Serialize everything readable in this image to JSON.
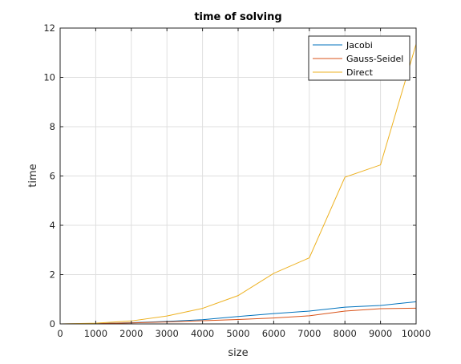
{
  "chart_data": {
    "type": "line",
    "title": "time of solving",
    "xlabel": "size",
    "ylabel": "time",
    "xlim": [
      0,
      10000
    ],
    "ylim": [
      0,
      12
    ],
    "xticks": [
      0,
      1000,
      2000,
      3000,
      4000,
      5000,
      6000,
      7000,
      8000,
      9000,
      10000
    ],
    "yticks": [
      0,
      2,
      4,
      6,
      8,
      10,
      12
    ],
    "xtick_labels": [
      "0",
      "1000",
      "2000",
      "3000",
      "4000",
      "5000",
      "6000",
      "7000",
      "8000",
      "9000",
      "10000"
    ],
    "ytick_labels": [
      "0",
      "2",
      "4",
      "6",
      "8",
      "10",
      "12"
    ],
    "grid": true,
    "legend_position": "top-right",
    "x": [
      0,
      1000,
      2000,
      3000,
      4000,
      5000,
      6000,
      7000,
      8000,
      9000,
      10000
    ],
    "series": [
      {
        "name": "Jacobi",
        "color": "#0072bd",
        "values": [
          0,
          0.01,
          0.05,
          0.1,
          0.17,
          0.3,
          0.42,
          0.52,
          0.68,
          0.75,
          0.9
        ]
      },
      {
        "name": "Gauss-Seidel",
        "color": "#d95319",
        "values": [
          0,
          0.01,
          0.04,
          0.08,
          0.13,
          0.18,
          0.24,
          0.33,
          0.52,
          0.62,
          0.64
        ]
      },
      {
        "name": "Direct",
        "color": "#edb120",
        "values": [
          0,
          0.03,
          0.12,
          0.32,
          0.63,
          1.15,
          2.05,
          2.68,
          5.95,
          6.45,
          11.35
        ]
      }
    ]
  }
}
